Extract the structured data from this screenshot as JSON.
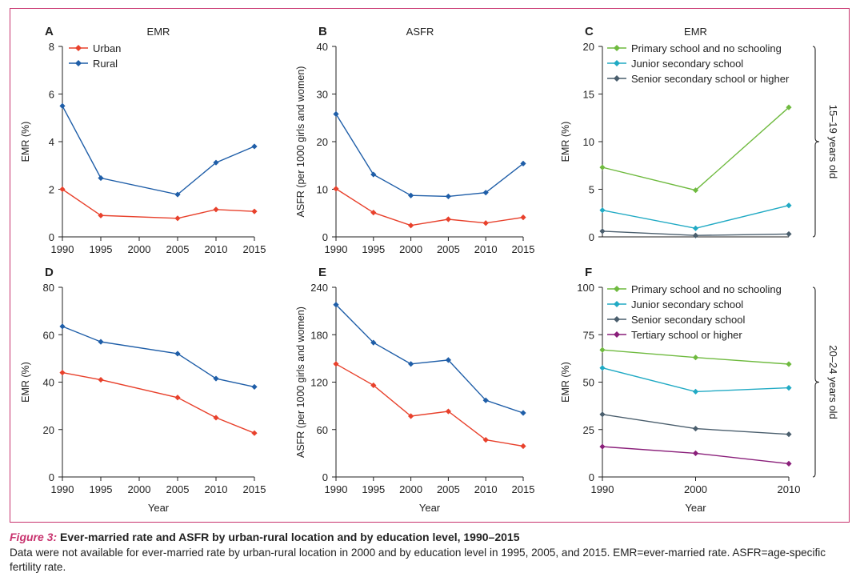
{
  "caption": {
    "label": "Figure 3:",
    "title": "Ever-married rate and ASFR by urban-rural location and by education level, 1990–2015",
    "body": "Data were not available for ever-married rate by urban-rural location in 2000 and by education level in 1995, 2005, and 2015. EMR=ever-married rate. ASFR=age-specific fertility rate."
  },
  "colors": {
    "urban": "#e8412c",
    "rural": "#1f5ea8",
    "primary": "#6fba3f",
    "junior": "#21aac4",
    "senior": "#4a5e6d",
    "tertiary": "#8a1f7a",
    "frame": "#c8336e"
  },
  "chart_data": [
    {
      "id": "A",
      "letter": "A",
      "type": "line",
      "title": "EMR",
      "xlabel": "",
      "ylabel": "EMR (%)",
      "x": [
        1990,
        1995,
        2000,
        2005,
        2010,
        2015
      ],
      "xticks": [
        "1990",
        "1995",
        "2000",
        "2005",
        "2010",
        "2015"
      ],
      "ylim": [
        0,
        8
      ],
      "yticks": [
        "0",
        "2",
        "4",
        "6",
        "8"
      ],
      "legend": "top-left",
      "show_legend": true,
      "series": [
        {
          "name": "Urban",
          "color": "#e8412c",
          "x": [
            1990,
            1995,
            2005,
            2010,
            2015
          ],
          "values": [
            2.0,
            0.9,
            0.78,
            1.15,
            1.07
          ]
        },
        {
          "name": "Rural",
          "color": "#1f5ea8",
          "x": [
            1990,
            1995,
            2005,
            2010,
            2015
          ],
          "values": [
            5.5,
            2.47,
            1.78,
            3.12,
            3.8
          ]
        }
      ]
    },
    {
      "id": "B",
      "letter": "B",
      "type": "line",
      "title": "ASFR",
      "xlabel": "",
      "ylabel": "ASFR (per 1000 girls and women)",
      "x": [
        1990,
        1995,
        2000,
        2005,
        2010,
        2015
      ],
      "xticks": [
        "1990",
        "1995",
        "2000",
        "2005",
        "2010",
        "2015"
      ],
      "ylim": [
        0,
        40
      ],
      "yticks": [
        "0",
        "10",
        "20",
        "30",
        "40"
      ],
      "legend": "none",
      "show_legend": false,
      "series": [
        {
          "name": "Urban",
          "color": "#e8412c",
          "x": [
            1990,
            1995,
            2000,
            2005,
            2010,
            2015
          ],
          "values": [
            10.1,
            5.1,
            2.4,
            3.7,
            2.9,
            4.1
          ]
        },
        {
          "name": "Rural",
          "color": "#1f5ea8",
          "x": [
            1990,
            1995,
            2000,
            2005,
            2010,
            2015
          ],
          "values": [
            25.8,
            13.1,
            8.7,
            8.5,
            9.3,
            15.4
          ]
        }
      ]
    },
    {
      "id": "C",
      "letter": "C",
      "type": "line",
      "title": "EMR",
      "xlabel": "",
      "ylabel": "EMR (%)",
      "x": [
        1990,
        2000,
        2010
      ],
      "xticks": [],
      "ylim": [
        0,
        20
      ],
      "yticks": [
        "0",
        "5",
        "10",
        "15",
        "20"
      ],
      "legend": "top",
      "show_legend": true,
      "bracket_label": "15–19 years old",
      "series": [
        {
          "name": "Primary school and no schooling",
          "color": "#6fba3f",
          "x": [
            1990,
            2000,
            2010
          ],
          "values": [
            7.3,
            4.9,
            13.6
          ]
        },
        {
          "name": "Junior secondary school",
          "color": "#21aac4",
          "x": [
            1990,
            2000,
            2010
          ],
          "values": [
            2.8,
            0.9,
            3.3
          ]
        },
        {
          "name": "Senior secondary school or higher",
          "color": "#4a5e6d",
          "x": [
            1990,
            2000,
            2010
          ],
          "values": [
            0.6,
            0.15,
            0.3
          ]
        }
      ]
    },
    {
      "id": "D",
      "letter": "D",
      "type": "line",
      "title": "",
      "xlabel": "Year",
      "ylabel": "EMR (%)",
      "x": [
        1990,
        1995,
        2000,
        2005,
        2010,
        2015
      ],
      "xticks": [
        "1990",
        "1995",
        "2000",
        "2005",
        "2010",
        "2015"
      ],
      "ylim": [
        0,
        80
      ],
      "yticks": [
        "0",
        "20",
        "40",
        "60",
        "80"
      ],
      "legend": "none",
      "show_legend": false,
      "series": [
        {
          "name": "Urban",
          "color": "#e8412c",
          "x": [
            1990,
            1995,
            2005,
            2010,
            2015
          ],
          "values": [
            44,
            41,
            33.5,
            25,
            18.5
          ]
        },
        {
          "name": "Rural",
          "color": "#1f5ea8",
          "x": [
            1990,
            1995,
            2005,
            2010,
            2015
          ],
          "values": [
            63.5,
            57,
            52,
            41.5,
            38
          ]
        }
      ]
    },
    {
      "id": "E",
      "letter": "E",
      "type": "line",
      "title": "",
      "xlabel": "Year",
      "ylabel": "ASFR (per 1000 girls and women)",
      "x": [
        1990,
        1995,
        2000,
        2005,
        2010,
        2015
      ],
      "xticks": [
        "1990",
        "1995",
        "2000",
        "2005",
        "2010",
        "2015"
      ],
      "ylim": [
        0,
        240
      ],
      "yticks": [
        "0",
        "60",
        "120",
        "180",
        "240"
      ],
      "legend": "none",
      "show_legend": false,
      "series": [
        {
          "name": "Urban",
          "color": "#e8412c",
          "x": [
            1990,
            1995,
            2000,
            2005,
            2010,
            2015
          ],
          "values": [
            143,
            116,
            77,
            83,
            47,
            39
          ]
        },
        {
          "name": "Rural",
          "color": "#1f5ea8",
          "x": [
            1990,
            1995,
            2000,
            2005,
            2010,
            2015
          ],
          "values": [
            218,
            170,
            143,
            148,
            97,
            81
          ]
        }
      ]
    },
    {
      "id": "F",
      "letter": "F",
      "type": "line",
      "title": "",
      "xlabel": "Year",
      "ylabel": "EMR (%)",
      "x": [
        1990,
        2000,
        2010
      ],
      "xticks": [
        "1990",
        "2000",
        "2010"
      ],
      "ylim": [
        0,
        100
      ],
      "yticks": [
        "0",
        "25",
        "50",
        "75",
        "100"
      ],
      "legend": "top",
      "show_legend": true,
      "bracket_label": "20–24 years old",
      "series": [
        {
          "name": "Primary school and no schooling",
          "color": "#6fba3f",
          "x": [
            1990,
            2000,
            2010
          ],
          "values": [
            67,
            63,
            59.5
          ]
        },
        {
          "name": "Junior secondary school",
          "color": "#21aac4",
          "x": [
            1990,
            2000,
            2010
          ],
          "values": [
            57.5,
            45,
            47
          ]
        },
        {
          "name": "Senior secondary school",
          "color": "#4a5e6d",
          "x": [
            1990,
            2000,
            2010
          ],
          "values": [
            33,
            25.5,
            22.5
          ]
        },
        {
          "name": "Tertiary school or higher",
          "color": "#8a1f7a",
          "x": [
            1990,
            2000,
            2010
          ],
          "values": [
            16,
            12.5,
            7
          ]
        }
      ]
    }
  ]
}
